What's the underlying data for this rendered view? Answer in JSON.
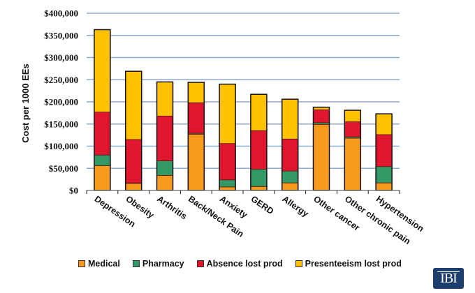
{
  "chart_data": {
    "type": "bar",
    "stacked": true,
    "title": "",
    "xlabel": "",
    "ylabel": "Cost per 1000 EEs",
    "ylim": [
      0,
      400000
    ],
    "yticks": [
      0,
      50000,
      100000,
      150000,
      200000,
      250000,
      300000,
      350000,
      400000
    ],
    "ytick_labels": [
      "$0",
      "$50,000",
      "$100,000",
      "$150,000",
      "$200,000",
      "$250,000",
      "$300,000",
      "$350,000",
      "$400,000"
    ],
    "grid": true,
    "legend_position": "bottom",
    "categories": [
      "Depression",
      "Obesity",
      "Arthritis",
      "Back/Neck Pain",
      "Anxiety",
      "GERD",
      "Allergy",
      "Other cancer",
      "Other chronic pain",
      "Hypertension"
    ],
    "series": [
      {
        "name": "Medical",
        "color": "#f79a1e",
        "values": [
          56000,
          16000,
          34000,
          127000,
          8000,
          9000,
          17000,
          149000,
          118000,
          17000
        ]
      },
      {
        "name": "Pharmacy",
        "color": "#339966",
        "values": [
          24000,
          1000,
          33000,
          2000,
          16000,
          39000,
          27000,
          4000,
          3000,
          37000
        ]
      },
      {
        "name": "Absence lost prod",
        "color": "#e0162f",
        "values": [
          97000,
          98000,
          101000,
          69000,
          82000,
          87000,
          72000,
          29000,
          34000,
          72000
        ]
      },
      {
        "name": "Presenteeism lost prod",
        "color": "#ffc000",
        "values": [
          186000,
          154000,
          77000,
          46000,
          134000,
          82000,
          90000,
          6000,
          26000,
          47000
        ]
      }
    ]
  },
  "logo_text": "IBI"
}
